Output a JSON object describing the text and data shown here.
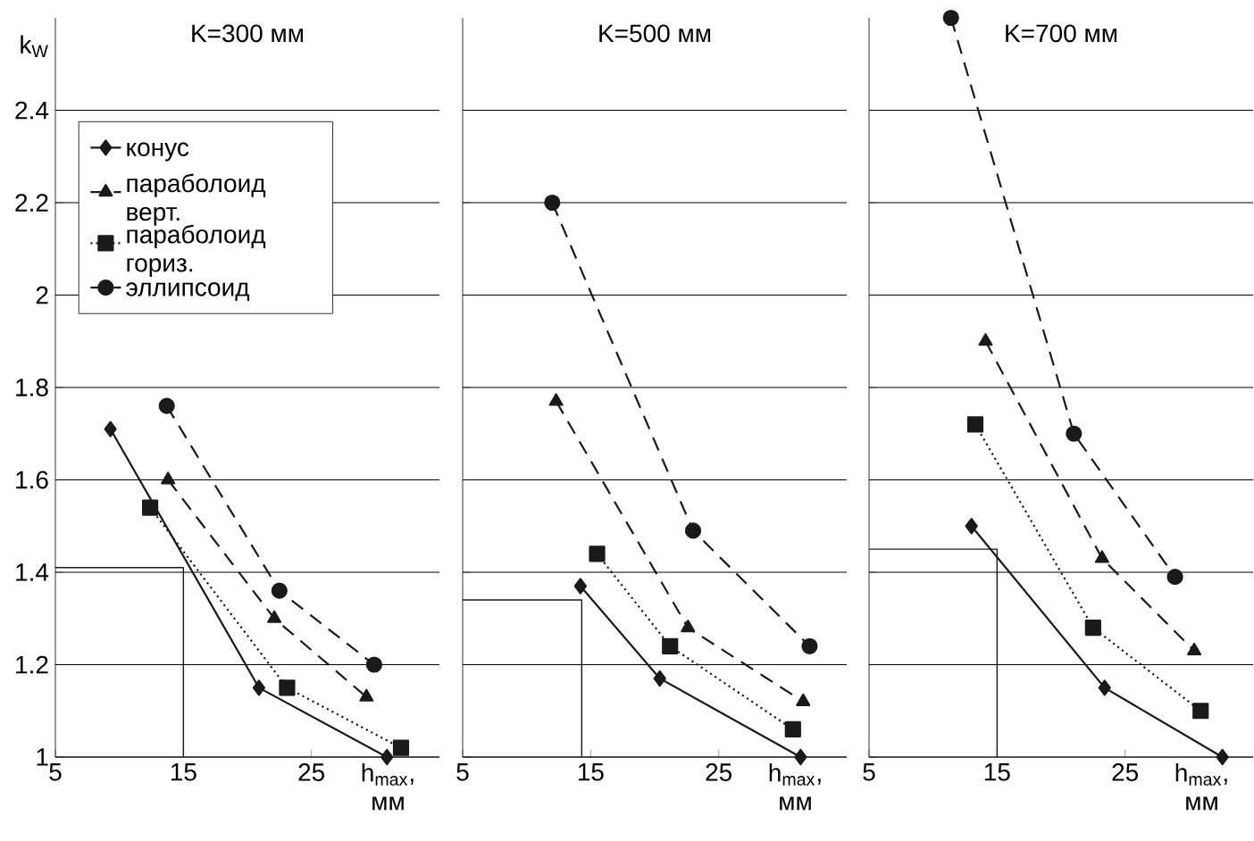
{
  "chart_data": [
    {
      "type": "line",
      "title": "K=300 мм",
      "xlabel": "h$_{max}$, мм",
      "ylabel": "k$_{W}$",
      "xlim": [
        5,
        35
      ],
      "ylim": [
        1,
        2.6
      ],
      "xticks": [
        5,
        15,
        25
      ],
      "yticks": [
        1,
        1.2,
        1.4,
        1.6,
        1.8,
        2,
        2.2,
        2.4
      ],
      "grid": "y",
      "legend": "top left",
      "series": [
        {
          "name": "конус",
          "color": "#1a1a1a",
          "marker": "diamond",
          "line_style": "solid",
          "x": [
            9.3,
            20.9,
            30.9
          ],
          "values": [
            1.71,
            1.15,
            1.0
          ]
        },
        {
          "name": "параболоид верт.",
          "color": "#1a1a1a",
          "marker": "triangle",
          "line_style": "dashed",
          "x": [
            13.8,
            22.1,
            29.3
          ],
          "values": [
            1.6,
            1.3,
            1.13
          ]
        },
        {
          "name": "параболоид гориз.",
          "color": "#1a1a1a",
          "marker": "square",
          "line_style": "dotted",
          "x": [
            12.4,
            23.1,
            32.0
          ],
          "values": [
            1.54,
            1.15,
            1.02
          ]
        },
        {
          "name": "эллипсоид",
          "color": "#1a1a1a",
          "marker": "circle",
          "line_style": "dashed",
          "x": [
            13.7,
            22.5,
            29.9
          ],
          "values": [
            1.76,
            1.36,
            1.2
          ]
        },
        {
          "color": "#1a1a1a",
          "marker": "none",
          "line_style": "solid",
          "x": [
            5,
            15,
            15
          ],
          "values": [
            1.41,
            1.41,
            1.0
          ]
        }
      ]
    },
    {
      "type": "line",
      "title": "K=500 мм",
      "xlabel": "h$_{max}$, мм",
      "xlim": [
        5,
        35
      ],
      "ylim": [
        1,
        2.6
      ],
      "xticks": [
        5,
        15,
        25
      ],
      "yticks": [
        1,
        1.2,
        1.4,
        1.6,
        1.8,
        2,
        2.2,
        2.4
      ],
      "grid": "y",
      "tick_labels": "x",
      "series": [
        {
          "color": "#1a1a1a",
          "marker": "diamond",
          "line_style": "solid",
          "x": [
            14.2,
            20.4,
            31.4
          ],
          "values": [
            1.37,
            1.17,
            1.0
          ]
        },
        {
          "color": "#1a1a1a",
          "marker": "triangle",
          "line_style": "dashed",
          "x": [
            12.3,
            22.6,
            31.6
          ],
          "values": [
            1.77,
            1.28,
            1.12
          ]
        },
        {
          "color": "#1a1a1a",
          "marker": "square",
          "line_style": "dotted",
          "x": [
            15.5,
            21.2,
            30.8
          ],
          "values": [
            1.44,
            1.24,
            1.06
          ]
        },
        {
          "color": "#1a1a1a",
          "marker": "circle",
          "line_style": "dashed",
          "x": [
            12.0,
            23.0,
            32.1
          ],
          "values": [
            2.2,
            1.49,
            1.24
          ]
        },
        {
          "color": "#1a1a1a",
          "marker": "none",
          "line_style": "solid",
          "x": [
            5,
            14.3,
            14.3
          ],
          "values": [
            1.34,
            1.34,
            1.0
          ]
        }
      ]
    },
    {
      "type": "line",
      "title": "K=700 мм",
      "xlabel": "h$_{max}$, мм",
      "xlim": [
        5,
        35
      ],
      "ylim": [
        1,
        2.6
      ],
      "xticks": [
        5,
        15,
        25
      ],
      "yticks": [
        1,
        1.2,
        1.4,
        1.6,
        1.8,
        2,
        2.2,
        2.4
      ],
      "grid": "y",
      "tick_labels": "x",
      "series": [
        {
          "color": "#1a1a1a",
          "marker": "diamond",
          "line_style": "solid",
          "x": [
            13.0,
            23.4,
            32.6
          ],
          "values": [
            1.5,
            1.15,
            1.0
          ]
        },
        {
          "color": "#1a1a1a",
          "marker": "triangle",
          "line_style": "dashed",
          "x": [
            14.1,
            23.2,
            30.4
          ],
          "values": [
            1.9,
            1.43,
            1.23
          ]
        },
        {
          "color": "#1a1a1a",
          "marker": "square",
          "line_style": "dotted",
          "x": [
            13.3,
            22.5,
            30.9
          ],
          "values": [
            1.72,
            1.28,
            1.1
          ]
        },
        {
          "color": "#1a1a1a",
          "marker": "circle",
          "line_style": "dashed",
          "x": [
            11.4,
            21.0,
            28.9
          ],
          "values": [
            2.6,
            1.7,
            1.39
          ]
        },
        {
          "color": "#1a1a1a",
          "marker": "none",
          "line_style": "solid",
          "x": [
            5,
            15,
            15
          ],
          "values": [
            1.45,
            1.45,
            1.0
          ]
        }
      ]
    }
  ]
}
